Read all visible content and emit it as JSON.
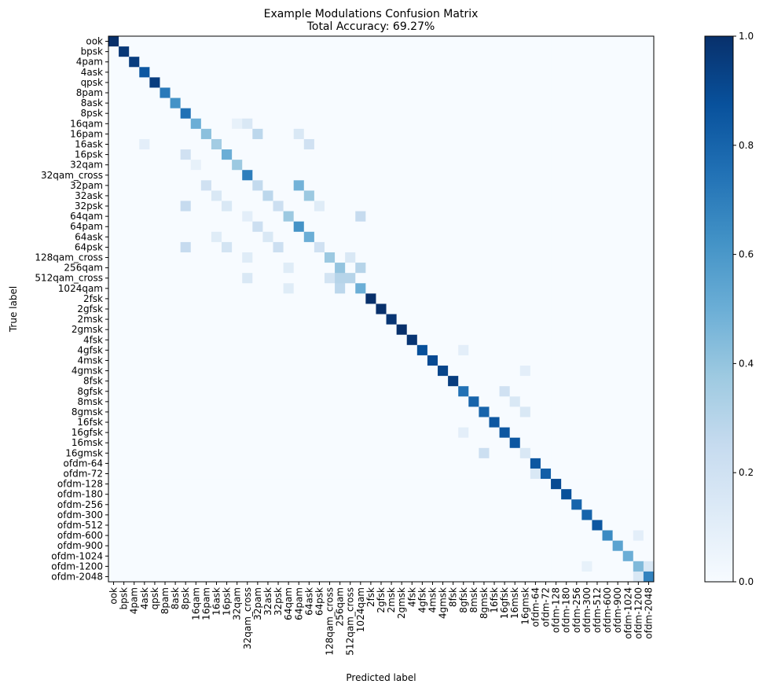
{
  "chart_data": {
    "type": "heatmap",
    "title": "Example Modulations Confusion Matrix",
    "subtitle": "Total Accuracy: 69.27%",
    "xlabel": "Predicted label",
    "ylabel": "True label",
    "colormap": "Blues",
    "colorbar": {
      "min": 0.0,
      "max": 1.0,
      "ticks": [
        0.0,
        0.2,
        0.4,
        0.6,
        0.8,
        1.0
      ],
      "tick_labels": [
        "0.0",
        "0.2",
        "0.4",
        "0.6",
        "0.8",
        "1.0"
      ]
    },
    "labels": [
      "ook",
      "bpsk",
      "4pam",
      "4ask",
      "qpsk",
      "8pam",
      "8ask",
      "8psk",
      "16qam",
      "16pam",
      "16ask",
      "16psk",
      "32qam",
      "32qam_cross",
      "32pam",
      "32ask",
      "32psk",
      "64qam",
      "64pam",
      "64ask",
      "64psk",
      "128qam_cross",
      "256qam",
      "512qam_cross",
      "1024qam",
      "2fsk",
      "2gfsk",
      "2msk",
      "2gmsk",
      "4fsk",
      "4gfsk",
      "4msk",
      "4gmsk",
      "8fsk",
      "8gfsk",
      "8msk",
      "8gmsk",
      "16fsk",
      "16gfsk",
      "16msk",
      "16gmsk",
      "ofdm-64",
      "ofdm-72",
      "ofdm-128",
      "ofdm-180",
      "ofdm-256",
      "ofdm-300",
      "ofdm-512",
      "ofdm-600",
      "ofdm-900",
      "ofdm-1024",
      "ofdm-1200",
      "ofdm-2048"
    ],
    "diagonal": [
      1.0,
      0.97,
      0.95,
      0.85,
      0.95,
      0.72,
      0.62,
      0.75,
      0.5,
      0.42,
      0.36,
      0.5,
      0.38,
      0.7,
      0.26,
      0.28,
      0.22,
      0.38,
      0.62,
      0.5,
      0.2,
      0.38,
      0.4,
      0.3,
      0.5,
      1.0,
      1.0,
      0.98,
      1.0,
      0.98,
      0.88,
      0.9,
      0.92,
      0.95,
      0.75,
      0.8,
      0.8,
      0.85,
      0.85,
      0.85,
      0.15,
      0.85,
      0.82,
      0.9,
      0.88,
      0.8,
      0.8,
      0.85,
      0.65,
      0.55,
      0.5,
      0.45,
      0.68
    ],
    "off_diagonal": [
      {
        "true": "16qam",
        "pred": "32qam_cross",
        "value": 0.15
      },
      {
        "true": "16qam",
        "pred": "32qam",
        "value": 0.08
      },
      {
        "true": "16pam",
        "pred": "32pam",
        "value": 0.28
      },
      {
        "true": "16pam",
        "pred": "64pam",
        "value": 0.15
      },
      {
        "true": "16ask",
        "pred": "64ask",
        "value": 0.2
      },
      {
        "true": "16ask",
        "pred": "4ask",
        "value": 0.1
      },
      {
        "true": "16psk",
        "pred": "8psk",
        "value": 0.2
      },
      {
        "true": "32qam",
        "pred": "16qam",
        "value": 0.08
      },
      {
        "true": "32pam",
        "pred": "16pam",
        "value": 0.2
      },
      {
        "true": "32pam",
        "pred": "64pam",
        "value": 0.48
      },
      {
        "true": "32ask",
        "pred": "64ask",
        "value": 0.38
      },
      {
        "true": "32ask",
        "pred": "16ask",
        "value": 0.15
      },
      {
        "true": "32psk",
        "pred": "8psk",
        "value": 0.25
      },
      {
        "true": "32psk",
        "pred": "64psk",
        "value": 0.12
      },
      {
        "true": "32psk",
        "pred": "16psk",
        "value": 0.15
      },
      {
        "true": "64qam",
        "pred": "1024qam",
        "value": 0.25
      },
      {
        "true": "64qam",
        "pred": "32qam_cross",
        "value": 0.1
      },
      {
        "true": "64pam",
        "pred": "32pam",
        "value": 0.22
      },
      {
        "true": "64ask",
        "pred": "32ask",
        "value": 0.15
      },
      {
        "true": "64ask",
        "pred": "16ask",
        "value": 0.12
      },
      {
        "true": "64psk",
        "pred": "32psk",
        "value": 0.22
      },
      {
        "true": "64psk",
        "pred": "8psk",
        "value": 0.25
      },
      {
        "true": "64psk",
        "pred": "16psk",
        "value": 0.18
      },
      {
        "true": "128qam_cross",
        "pred": "512qam_cross",
        "value": 0.15
      },
      {
        "true": "128qam_cross",
        "pred": "32qam_cross",
        "value": 0.12
      },
      {
        "true": "256qam",
        "pred": "1024qam",
        "value": 0.3
      },
      {
        "true": "256qam",
        "pred": "64qam",
        "value": 0.12
      },
      {
        "true": "512qam_cross",
        "pred": "256qam",
        "value": 0.3
      },
      {
        "true": "512qam_cross",
        "pred": "128qam_cross",
        "value": 0.18
      },
      {
        "true": "512qam_cross",
        "pred": "32qam_cross",
        "value": 0.15
      },
      {
        "true": "1024qam",
        "pred": "256qam",
        "value": 0.28
      },
      {
        "true": "1024qam",
        "pred": "64qam",
        "value": 0.12
      },
      {
        "true": "4gfsk",
        "pred": "8gfsk",
        "value": 0.1
      },
      {
        "true": "4gmsk",
        "pred": "16gmsk",
        "value": 0.1
      },
      {
        "true": "8gfsk",
        "pred": "16gfsk",
        "value": 0.2
      },
      {
        "true": "8msk",
        "pred": "16msk",
        "value": 0.15
      },
      {
        "true": "8gmsk",
        "pred": "16gmsk",
        "value": 0.15
      },
      {
        "true": "16gfsk",
        "pred": "8gfsk",
        "value": 0.1
      },
      {
        "true": "16gmsk",
        "pred": "8gmsk",
        "value": 0.22
      },
      {
        "true": "ofdm-72",
        "pred": "ofdm-64",
        "value": 0.15
      },
      {
        "true": "ofdm-600",
        "pred": "ofdm-1200",
        "value": 0.1
      },
      {
        "true": "ofdm-1200",
        "pred": "ofdm-300",
        "value": 0.08
      },
      {
        "true": "ofdm-1200",
        "pred": "ofdm-2048",
        "value": 0.15
      },
      {
        "true": "ofdm-2048",
        "pred": "ofdm-1200",
        "value": 0.15
      }
    ]
  }
}
